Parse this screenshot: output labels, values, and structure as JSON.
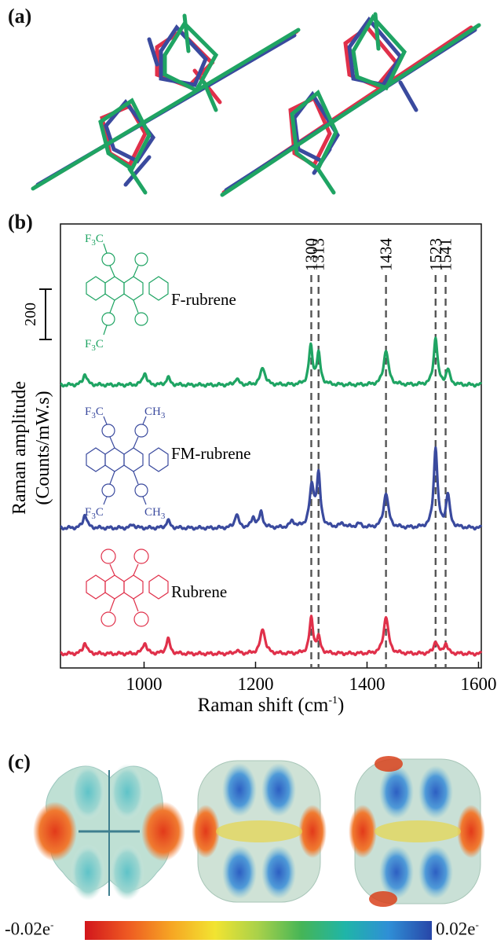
{
  "panels": {
    "a": "(a)",
    "b": "(b)",
    "c": "(c)"
  },
  "colors": {
    "f_rubrene": "#1fa463",
    "fm_rubrene": "#3a4a9e",
    "rubrene": "#e0304a",
    "dashed": "#555555"
  },
  "chart_data": {
    "type": "line",
    "xlabel": "Raman shift (cm",
    "xlabel_sup": "-1",
    "xlabel_tail": ")",
    "ylabel_line1": "Raman amplitude",
    "ylabel_line2": "(Counts/mW.s)",
    "xlim": [
      850,
      1605
    ],
    "xticks": [
      1000,
      1200,
      1400,
      1600
    ],
    "scale_bar": {
      "label": "200",
      "value": 200
    },
    "reference_lines": [
      1300,
      1313,
      1434,
      1523,
      1541
    ],
    "reference_labels": [
      "1300",
      "1313",
      "1434",
      "1523",
      "1541"
    ],
    "series": [
      {
        "name": "F-rubrene",
        "color_key": "f_rubrene",
        "baseline": 0,
        "peaks": [
          [
            894,
            45,
            4
          ],
          [
            1001,
            50,
            4
          ],
          [
            1043,
            30,
            4
          ],
          [
            1166,
            25,
            4
          ],
          [
            1213,
            70,
            5
          ],
          [
            1299,
            150,
            4
          ],
          [
            1313,
            120,
            4
          ],
          [
            1434,
            140,
            5
          ],
          [
            1523,
            190,
            4
          ],
          [
            1545,
            60,
            4
          ]
        ]
      },
      {
        "name": "FM-rubrene",
        "color_key": "fm_rubrene",
        "baseline": 0,
        "peaks": [
          [
            894,
            55,
            4
          ],
          [
            980,
            15,
            4
          ],
          [
            1043,
            30,
            4
          ],
          [
            1166,
            55,
            4
          ],
          [
            1196,
            40,
            4
          ],
          [
            1210,
            60,
            4
          ],
          [
            1266,
            25,
            5
          ],
          [
            1301,
            160,
            5
          ],
          [
            1313,
            200,
            4
          ],
          [
            1356,
            15,
            6
          ],
          [
            1385,
            15,
            6
          ],
          [
            1434,
            140,
            5
          ],
          [
            1523,
            320,
            4
          ],
          [
            1545,
            130,
            4
          ]
        ]
      },
      {
        "name": "Rubrene",
        "color_key": "rubrene",
        "baseline": 0,
        "peaks": [
          [
            894,
            45,
            4
          ],
          [
            1001,
            45,
            4
          ],
          [
            1043,
            60,
            4
          ],
          [
            1166,
            12,
            4
          ],
          [
            1213,
            100,
            5
          ],
          [
            1300,
            140,
            4
          ],
          [
            1313,
            60,
            4
          ],
          [
            1434,
            150,
            5
          ],
          [
            1523,
            50,
            4
          ],
          [
            1541,
            40,
            4
          ]
        ]
      }
    ]
  },
  "molecules": {
    "f_label": "F-rubrene",
    "fm_label": "FM-rubrene",
    "r_label": "Rubrene",
    "cf3": "F",
    "cf3_sub": "3",
    "cf3_tail": "C",
    "ch3": "CH",
    "ch3_sub": "3"
  },
  "colorbar": {
    "min_label": "-0.02e",
    "max_label": "0.02e",
    "sup": "-",
    "stops": [
      "#d2161c",
      "#ee5a22",
      "#f6a623",
      "#f2e431",
      "#a8d14a",
      "#45b557",
      "#1fb5a8",
      "#2f8fd6",
      "#2846a8"
    ]
  }
}
